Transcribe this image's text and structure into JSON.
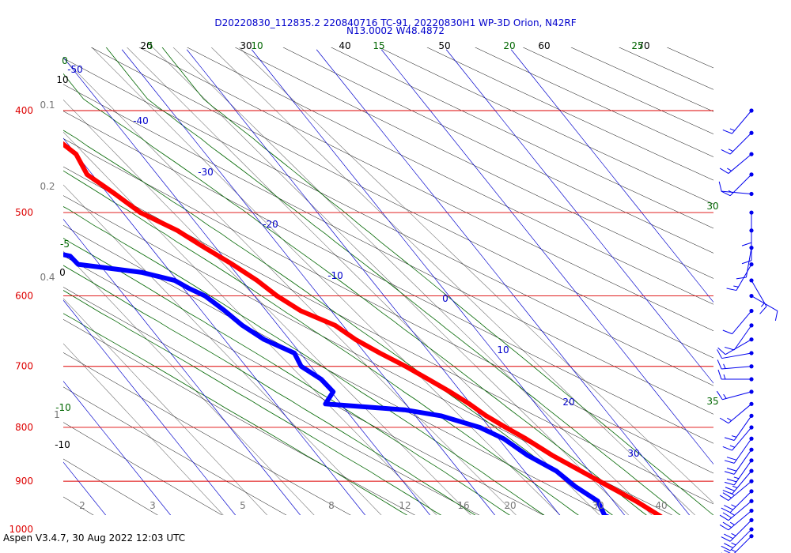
{
  "title_line1": "D20220830_112835.2 220840716 TC-91, 20220830H1 WP-3D Orion, N42RF",
  "title_line2": "N13.0002 W48.4872",
  "footer": "Aspen V3.4.7, 30 Aug 2022  12:03 UTC",
  "colors": {
    "temperature": "#ff0000",
    "dewpoint": "#0000ff",
    "isobar": "#dd0000",
    "isotherm": "#0000cc",
    "dry_adiabat": "#000000",
    "moist_adiabat": "#006600",
    "mixing_ratio": "#777777"
  },
  "chart_data": {
    "type": "skew-t",
    "pressure_range_hPa": [
      1030,
      400
    ],
    "pressure_tick_labels": [
      "400",
      "500",
      "600",
      "700",
      "800",
      "900",
      "1000"
    ],
    "temperature_scale_labels": [
      "20",
      "30",
      "40",
      "50",
      "60",
      "70"
    ],
    "isotherm_labels": [
      "-50",
      "-40",
      "-30",
      "-20",
      "-10",
      "0",
      "10",
      "20",
      "30"
    ],
    "moist_adiabat_labels_top": [
      "5",
      "10",
      "15",
      "20",
      "25"
    ],
    "moist_adiabat_labels_side": [
      "0",
      "-5",
      "-10",
      "30",
      "35"
    ],
    "dry_adiabat_labels_side": [
      "10",
      "0",
      "-10"
    ],
    "mixing_ratio_labels_side": [
      "0.1",
      "0.2",
      "0.4",
      "1"
    ],
    "mixing_ratio_labels_bottom": [
      "2",
      "3",
      "5",
      "8",
      "12",
      "16",
      "20",
      "30",
      "40"
    ],
    "temperature_profile": [
      {
        "p": 400,
        "t": -22.2
      },
      {
        "p": 410,
        "t": -22.3
      },
      {
        "p": 420,
        "t": -21.6
      },
      {
        "p": 440,
        "t": -20.0
      },
      {
        "p": 460,
        "t": -20.8
      },
      {
        "p": 480,
        "t": -18.9
      },
      {
        "p": 500,
        "t": -17.3
      },
      {
        "p": 520,
        "t": -13.8
      },
      {
        "p": 540,
        "t": -11.7
      },
      {
        "p": 560,
        "t": -9.5
      },
      {
        "p": 580,
        "t": -7.7
      },
      {
        "p": 600,
        "t": -6.5
      },
      {
        "p": 620,
        "t": -4.7
      },
      {
        "p": 640,
        "t": -1.2
      },
      {
        "p": 660,
        "t": 0.2
      },
      {
        "p": 680,
        "t": 2.3
      },
      {
        "p": 700,
        "t": 4.6
      },
      {
        "p": 720,
        "t": 6.5
      },
      {
        "p": 740,
        "t": 8.3
      },
      {
        "p": 760,
        "t": 9.8
      },
      {
        "p": 780,
        "t": 10.9
      },
      {
        "p": 800,
        "t": 12.5
      },
      {
        "p": 820,
        "t": 14.2
      },
      {
        "p": 850,
        "t": 16.2
      },
      {
        "p": 880,
        "t": 18.7
      },
      {
        "p": 910,
        "t": 21.1
      },
      {
        "p": 940,
        "t": 23.5
      },
      {
        "p": 970,
        "t": 25.3
      },
      {
        "p": 1000,
        "t": 26.6
      },
      {
        "p": 1020,
        "t": 27.8
      }
    ],
    "dewpoint_profile": [
      {
        "p": 420,
        "t": -56.5
      },
      {
        "p": 428,
        "t": -54.8
      },
      {
        "p": 436,
        "t": -53.8
      },
      {
        "p": 444,
        "t": -54.5
      },
      {
        "p": 450,
        "t": -49.1
      },
      {
        "p": 455,
        "t": -43.7
      },
      {
        "p": 460,
        "t": -60.0
      },
      {
        "p": 470,
        "t": -62.0
      },
      {
        "p": 480,
        "t": -53.6
      },
      {
        "p": 490,
        "t": -44.5
      },
      {
        "p": 500,
        "t": -36.8
      },
      {
        "p": 510,
        "t": -37.2
      },
      {
        "p": 520,
        "t": -34.5
      },
      {
        "p": 530,
        "t": -37.1
      },
      {
        "p": 540,
        "t": -38.3
      },
      {
        "p": 550,
        "t": -33.5
      },
      {
        "p": 560,
        "t": -33.3
      },
      {
        "p": 570,
        "t": -24.4
      },
      {
        "p": 580,
        "t": -20.4
      },
      {
        "p": 590,
        "t": -19.2
      },
      {
        "p": 600,
        "t": -17.6
      },
      {
        "p": 620,
        "t": -16.4
      },
      {
        "p": 640,
        "t": -15.5
      },
      {
        "p": 660,
        "t": -13.9
      },
      {
        "p": 680,
        "t": -10.9
      },
      {
        "p": 700,
        "t": -11.5
      },
      {
        "p": 720,
        "t": -10.0
      },
      {
        "p": 740,
        "t": -9.7
      },
      {
        "p": 760,
        "t": -12.4
      },
      {
        "p": 770,
        "t": -0.8
      },
      {
        "p": 780,
        "t": 3.9
      },
      {
        "p": 800,
        "t": 8.5
      },
      {
        "p": 820,
        "t": 10.8
      },
      {
        "p": 850,
        "t": 12.4
      },
      {
        "p": 880,
        "t": 14.9
      },
      {
        "p": 910,
        "t": 15.9
      },
      {
        "p": 940,
        "t": 17.6
      },
      {
        "p": 970,
        "t": 16.9
      },
      {
        "p": 1000,
        "t": 19.8
      },
      {
        "p": 1020,
        "t": 22.1
      }
    ],
    "wind_barbs": [
      {
        "p": 400,
        "dir": 220,
        "kt": 15
      },
      {
        "p": 420,
        "dir": 225,
        "kt": 15
      },
      {
        "p": 440,
        "dir": 230,
        "kt": 15
      },
      {
        "p": 460,
        "dir": 225,
        "kt": 15
      },
      {
        "p": 480,
        "dir": 275,
        "kt": 10
      },
      {
        "p": 500,
        "dir": 180,
        "kt": 10
      },
      {
        "p": 520,
        "dir": 180,
        "kt": 10
      },
      {
        "p": 540,
        "dir": 190,
        "kt": 10
      },
      {
        "p": 560,
        "dir": 210,
        "kt": 15
      },
      {
        "p": 580,
        "dir": 150,
        "kt": 15
      },
      {
        "p": 600,
        "dir": 120,
        "kt": 10
      },
      {
        "p": 620,
        "dir": 220,
        "kt": 10
      },
      {
        "p": 640,
        "dir": 215,
        "kt": 10
      },
      {
        "p": 660,
        "dir": 240,
        "kt": 10
      },
      {
        "p": 680,
        "dir": 260,
        "kt": 10
      },
      {
        "p": 700,
        "dir": 265,
        "kt": 15
      },
      {
        "p": 720,
        "dir": 270,
        "kt": 15
      },
      {
        "p": 740,
        "dir": 255,
        "kt": 15
      },
      {
        "p": 760,
        "dir": 230,
        "kt": 15
      },
      {
        "p": 780,
        "dir": 215,
        "kt": 15
      },
      {
        "p": 800,
        "dir": 220,
        "kt": 15
      },
      {
        "p": 820,
        "dir": 215,
        "kt": 20
      },
      {
        "p": 840,
        "dir": 215,
        "kt": 20
      },
      {
        "p": 860,
        "dir": 215,
        "kt": 25
      },
      {
        "p": 880,
        "dir": 220,
        "kt": 25
      },
      {
        "p": 900,
        "dir": 230,
        "kt": 25
      },
      {
        "p": 920,
        "dir": 225,
        "kt": 25
      },
      {
        "p": 940,
        "dir": 230,
        "kt": 25
      },
      {
        "p": 960,
        "dir": 230,
        "kt": 25
      },
      {
        "p": 980,
        "dir": 225,
        "kt": 25
      },
      {
        "p": 1000,
        "dir": 225,
        "kt": 25
      },
      {
        "p": 1015,
        "dir": 225,
        "kt": 25
      }
    ]
  }
}
